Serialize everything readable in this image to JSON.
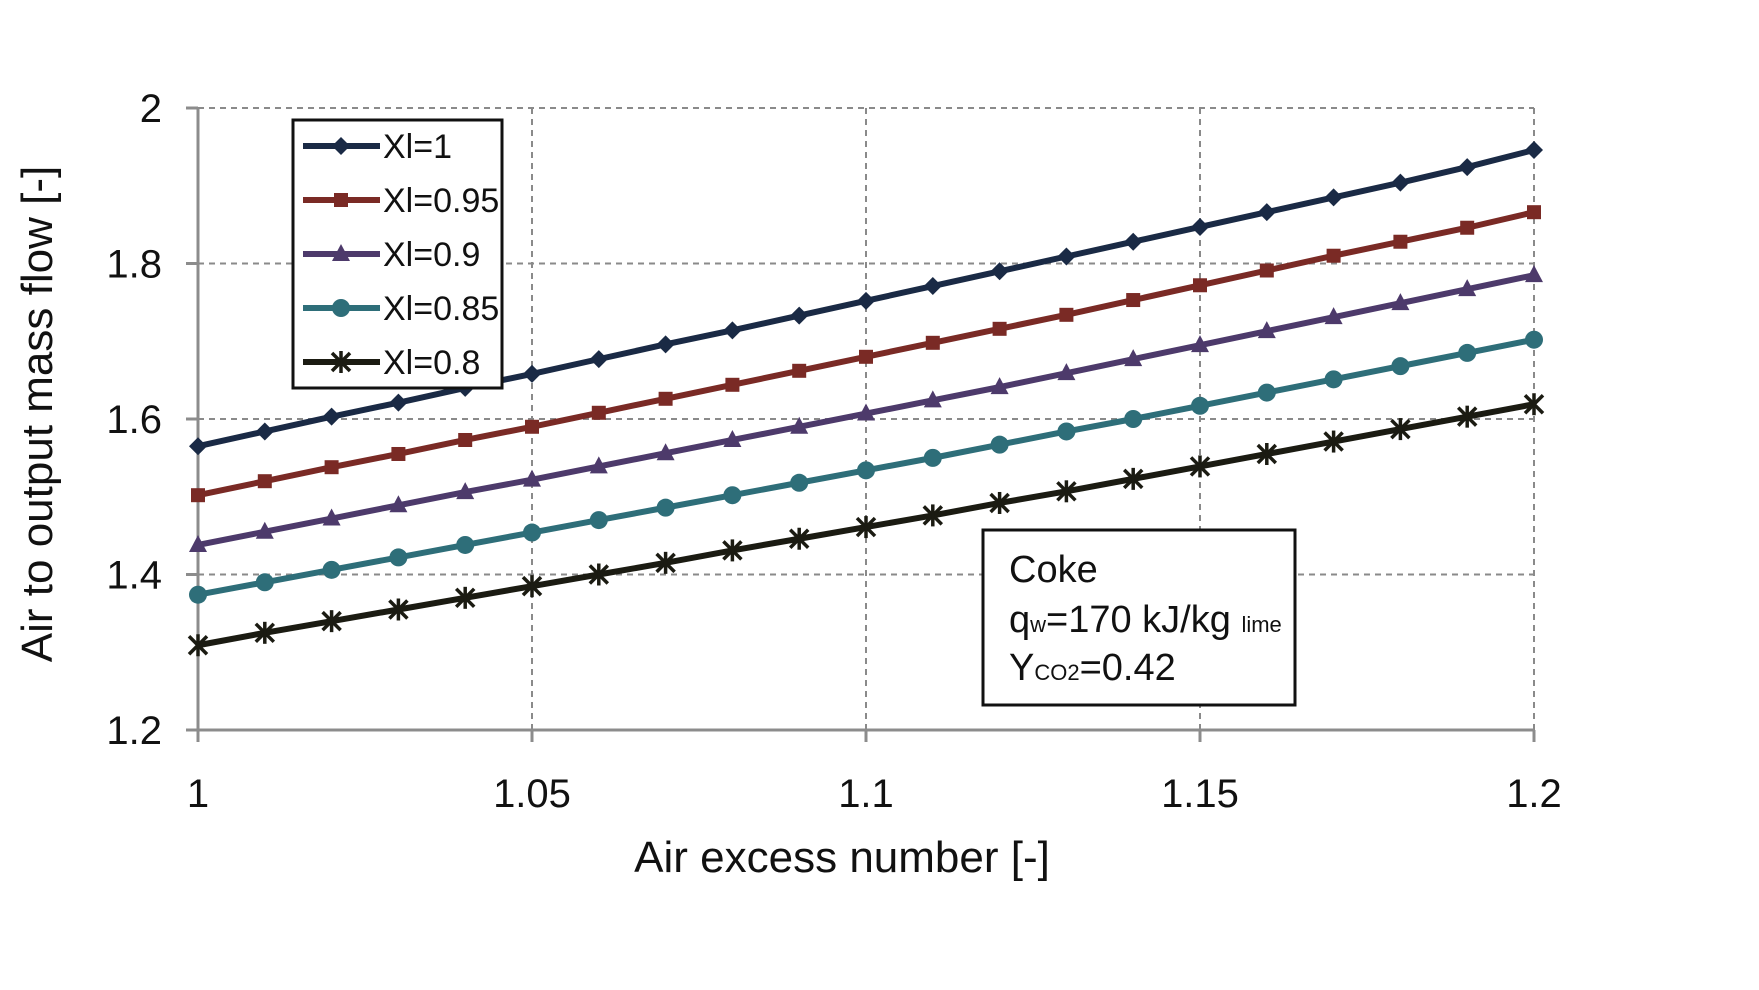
{
  "chart_data": {
    "type": "line",
    "xlabel": "Air excess number [-]",
    "ylabel": "Air to output mass flow  [-]",
    "xlim": [
      1.0,
      1.2
    ],
    "ylim": [
      1.2,
      2.0
    ],
    "xticks": [
      1.0,
      1.05,
      1.1,
      1.15,
      1.2
    ],
    "xtick_labels": [
      "1",
      "1.05",
      "1.1",
      "1.15",
      "1.2"
    ],
    "yticks": [
      1.2,
      1.4,
      1.6,
      1.8,
      2.0
    ],
    "ytick_labels": [
      "1.2",
      "1.4",
      "1.6",
      "1.8",
      "2"
    ],
    "grid": true,
    "legend_position": "top-left",
    "x": [
      1.0,
      1.01,
      1.02,
      1.03,
      1.04,
      1.05,
      1.06,
      1.07,
      1.08,
      1.09,
      1.1,
      1.11,
      1.12,
      1.13,
      1.14,
      1.15,
      1.16,
      1.17,
      1.18,
      1.19,
      1.2
    ],
    "series": [
      {
        "name": "Xl=1",
        "marker": "diamond",
        "color": "#1a2a45",
        "values": [
          1.565,
          1.584,
          1.603,
          1.621,
          1.64,
          1.658,
          1.677,
          1.696,
          1.714,
          1.733,
          1.752,
          1.771,
          1.79,
          1.809,
          1.828,
          1.847,
          1.866,
          1.885,
          1.904,
          1.924,
          1.946
        ]
      },
      {
        "name": "Xl=0.95",
        "marker": "square",
        "color": "#7a2a25",
        "values": [
          1.502,
          1.52,
          1.538,
          1.555,
          1.573,
          1.59,
          1.608,
          1.626,
          1.644,
          1.662,
          1.68,
          1.698,
          1.716,
          1.734,
          1.753,
          1.772,
          1.791,
          1.81,
          1.828,
          1.846,
          1.866
        ]
      },
      {
        "name": "Xl=0.9",
        "marker": "triangle",
        "color": "#4d3a6b",
        "values": [
          1.438,
          1.455,
          1.472,
          1.489,
          1.506,
          1.522,
          1.539,
          1.556,
          1.573,
          1.59,
          1.607,
          1.624,
          1.641,
          1.659,
          1.677,
          1.695,
          1.713,
          1.731,
          1.749,
          1.767,
          1.785
        ]
      },
      {
        "name": "Xl=0.85",
        "marker": "circle",
        "color": "#2e6e79",
        "values": [
          1.374,
          1.39,
          1.406,
          1.422,
          1.438,
          1.454,
          1.47,
          1.486,
          1.502,
          1.518,
          1.534,
          1.55,
          1.567,
          1.584,
          1.6,
          1.617,
          1.634,
          1.651,
          1.668,
          1.685,
          1.702
        ]
      },
      {
        "name": "Xl=0.8",
        "marker": "asterisk",
        "color": "#1b1b12",
        "values": [
          1.309,
          1.325,
          1.34,
          1.355,
          1.37,
          1.385,
          1.4,
          1.415,
          1.431,
          1.446,
          1.461,
          1.476,
          1.492,
          1.507,
          1.523,
          1.539,
          1.555,
          1.571,
          1.587,
          1.603,
          1.619
        ]
      }
    ],
    "annotation": {
      "line1": "Coke",
      "line2_main": "q",
      "line2_sub": "w",
      "line2_rest": "=170 kJ/kg ",
      "line2_small": "lime",
      "line3_main": "Y",
      "line3_sub": "CO2",
      "line3_rest": "=0.42"
    }
  }
}
